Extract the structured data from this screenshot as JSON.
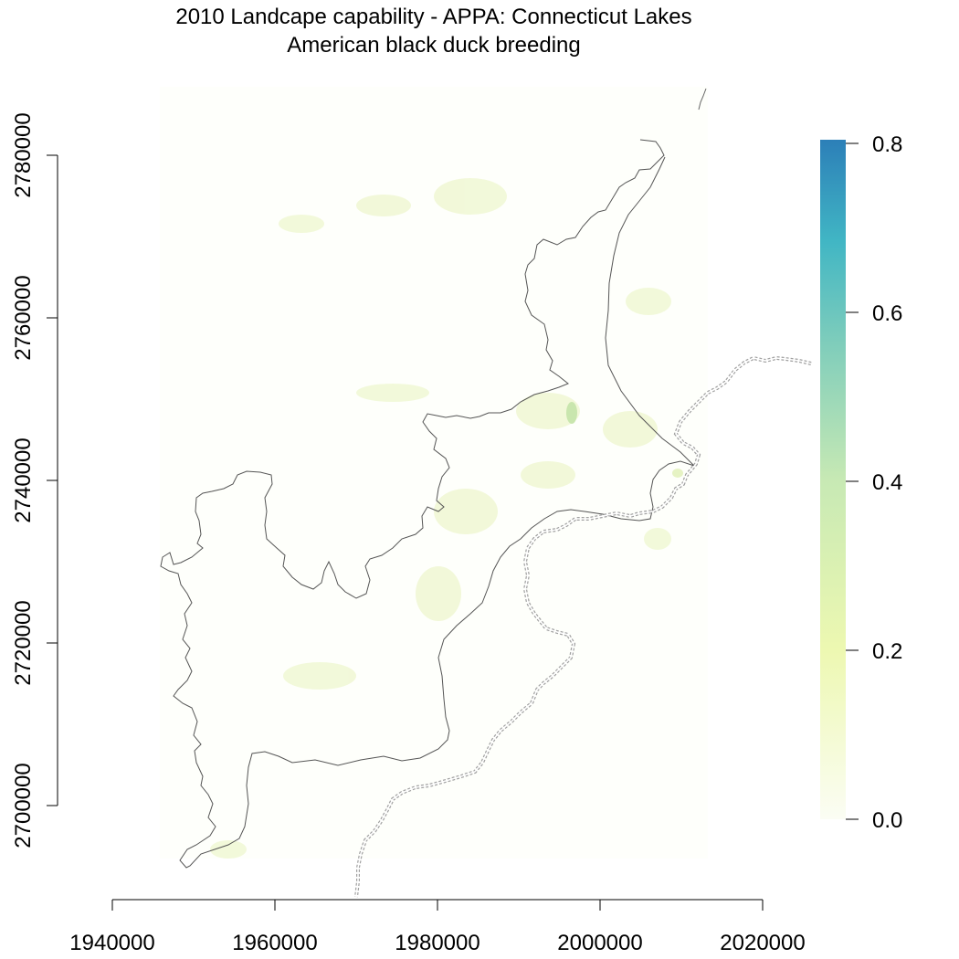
{
  "title": "2010 Landcape capability - APPA: Connecticut Lakes",
  "subtitle": "American black duck breeding",
  "x_axis": {
    "ticks": [
      1940000,
      1960000,
      1980000,
      2000000,
      2020000
    ],
    "labels": [
      "1940000",
      "1960000",
      "1980000",
      "2000000",
      "2020000"
    ]
  },
  "y_axis": {
    "ticks": [
      2700000,
      2720000,
      2740000,
      2760000,
      2780000
    ],
    "labels": [
      "2700000",
      "2720000",
      "2740000",
      "2760000",
      "2780000"
    ]
  },
  "legend": {
    "ticks": [
      0.0,
      0.2,
      0.4,
      0.6,
      0.8
    ],
    "labels": [
      "0.0",
      "0.2",
      "0.4",
      "0.6",
      "0.8"
    ],
    "colors": [
      "#fbfdf4",
      "#edf8b1",
      "#c7e9b4",
      "#7fcdbb",
      "#41b6c4",
      "#2c7fb8"
    ],
    "range": [
      0,
      0.8
    ]
  },
  "colors": {
    "boundary": "#555555",
    "state_line": "#9a9a9a"
  }
}
